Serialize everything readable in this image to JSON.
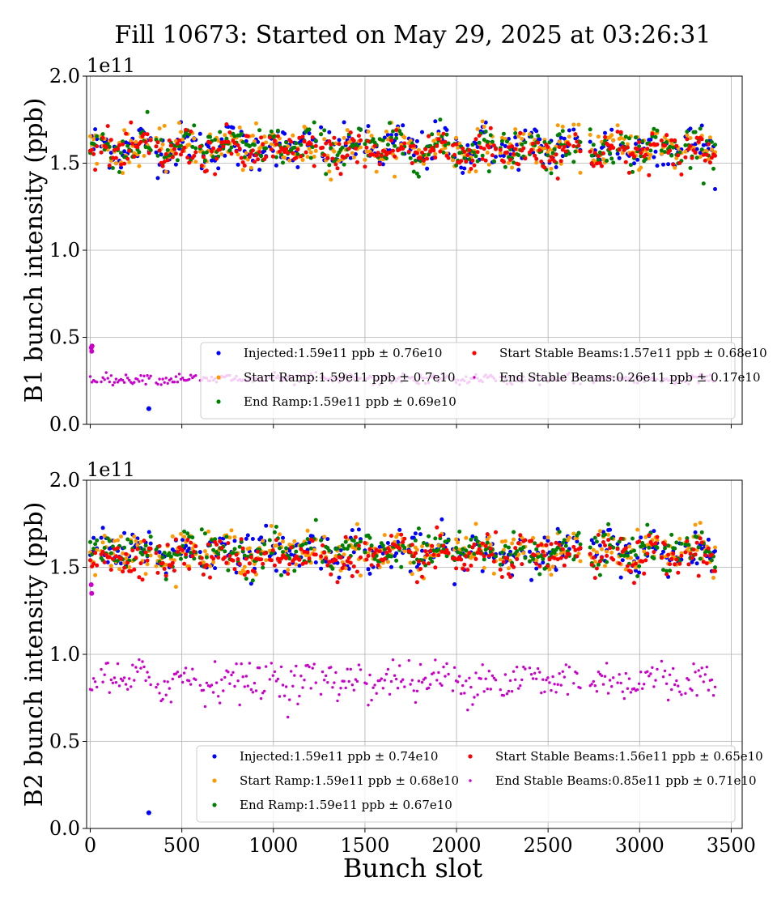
{
  "title": "Fill 10673: Started on May 29, 2025 at 03:26:31",
  "xlabel": "Bunch slot",
  "chart_data": [
    {
      "type": "scatter",
      "ylabel": "B1 bunch intensity (ppb)",
      "y_offset_label": "1e11",
      "xlim": [
        -20,
        3560
      ],
      "ylim": [
        0.0,
        2.0
      ],
      "xticks": [
        0,
        500,
        1000,
        1500,
        2000,
        2500,
        3000,
        3500
      ],
      "xtick_labels": [],
      "yticks": [
        0.0,
        0.5,
        1.0,
        1.5,
        2.0
      ],
      "ytick_labels": [
        "0.0",
        "0.5",
        "1.0",
        "1.5",
        "2.0"
      ],
      "grid": true,
      "legend_position": "lower-right",
      "series": [
        {
          "name": "Injected:1.59e11 ppb ± 0.76e10",
          "color": "#0000ff",
          "mean": 1.59,
          "std": 0.076,
          "outliers": [
            {
              "x": 320,
              "y": 0.09
            }
          ]
        },
        {
          "name": "Start Ramp:1.59e11 ppb ± 0.7e10",
          "color": "#ff9900",
          "mean": 1.59,
          "std": 0.07
        },
        {
          "name": "End Ramp:1.59e11 ppb ± 0.69e10",
          "color": "#008000",
          "mean": 1.59,
          "std": 0.069
        },
        {
          "name": "Start Stable Beams:1.57e11 ppb ± 0.68e10",
          "color": "#ff0000",
          "mean": 1.57,
          "std": 0.068
        },
        {
          "name": "End Stable Beams:0.26e11 ppb ± 0.17e10",
          "color": "#cc00cc",
          "mean": 0.26,
          "std": 0.017,
          "outliers": [
            {
              "x": 5,
              "y": 0.44
            },
            {
              "x": 8,
              "y": 0.42
            },
            {
              "x": 10,
              "y": 0.45
            }
          ]
        }
      ],
      "filled_ranges": [
        [
          0,
          40
        ],
        [
          60,
          330
        ],
        [
          360,
          580
        ],
        [
          600,
          960
        ],
        [
          980,
          1240
        ],
        [
          1260,
          1480
        ],
        [
          1500,
          1720
        ],
        [
          1740,
          1960
        ],
        [
          1980,
          2220
        ],
        [
          2240,
          2380
        ],
        [
          2400,
          2620
        ],
        [
          2640,
          2680
        ],
        [
          2730,
          2860
        ],
        [
          2880,
          3100
        ],
        [
          3120,
          3230
        ],
        [
          3250,
          3420
        ]
      ]
    },
    {
      "type": "scatter",
      "ylabel": "B2 bunch intensity (ppb)",
      "y_offset_label": "1e11",
      "xlim": [
        -20,
        3560
      ],
      "ylim": [
        0.0,
        2.0
      ],
      "xticks": [
        0,
        500,
        1000,
        1500,
        2000,
        2500,
        3000,
        3500
      ],
      "xtick_labels": [
        "0",
        "500",
        "1000",
        "1500",
        "2000",
        "2500",
        "3000",
        "3500"
      ],
      "yticks": [
        0.0,
        0.5,
        1.0,
        1.5,
        2.0
      ],
      "ytick_labels": [
        "0.0",
        "0.5",
        "1.0",
        "1.5",
        "2.0"
      ],
      "grid": true,
      "legend_position": "lower-right",
      "series": [
        {
          "name": "Injected:1.59e11 ppb ± 0.74e10",
          "color": "#0000ff",
          "mean": 1.59,
          "std": 0.074,
          "outliers": [
            {
              "x": 320,
              "y": 0.09
            }
          ]
        },
        {
          "name": "Start Ramp:1.59e11 ppb ± 0.68e10",
          "color": "#ff9900",
          "mean": 1.59,
          "std": 0.068
        },
        {
          "name": "End Ramp:1.59e11 ppb ± 0.67e10",
          "color": "#008000",
          "mean": 1.59,
          "std": 0.067
        },
        {
          "name": "Start Stable Beams:1.56e11 ppb ± 0.65e10",
          "color": "#ff0000",
          "mean": 1.56,
          "std": 0.065
        },
        {
          "name": "End Stable Beams:0.85e11 ppb ± 0.71e10",
          "color": "#cc00cc",
          "mean": 0.85,
          "std": 0.071,
          "outliers": [
            {
              "x": 5,
              "y": 1.4
            },
            {
              "x": 8,
              "y": 1.35
            }
          ]
        }
      ],
      "filled_ranges": [
        [
          0,
          40
        ],
        [
          60,
          330
        ],
        [
          360,
          580
        ],
        [
          600,
          960
        ],
        [
          980,
          1240
        ],
        [
          1260,
          1480
        ],
        [
          1500,
          1720
        ],
        [
          1740,
          1960
        ],
        [
          1980,
          2220
        ],
        [
          2240,
          2380
        ],
        [
          2400,
          2620
        ],
        [
          2640,
          2680
        ],
        [
          2730,
          2860
        ],
        [
          2880,
          3100
        ],
        [
          3120,
          3230
        ],
        [
          3250,
          3420
        ]
      ]
    }
  ]
}
